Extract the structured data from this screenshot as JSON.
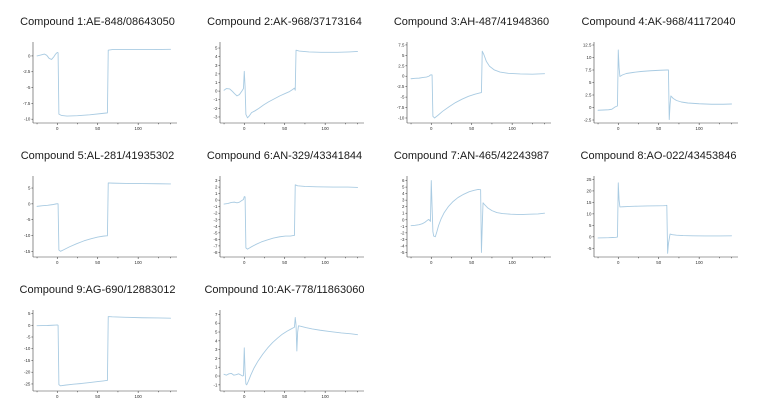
{
  "figure": {
    "background": "#ffffff",
    "line_color": "#a9cbe2",
    "axis_color": "#444444",
    "tick_label_color": "#333333",
    "title_color": "#1a1a1a"
  },
  "chart_data": [
    {
      "type": "line",
      "title": "Compound 1:AE-848/08643050",
      "xlim": [
        -30,
        148
      ],
      "ylim": [
        -10.6,
        2.2
      ],
      "x_ticks": [
        0,
        50,
        100
      ],
      "x_minor_ticks": [
        -25,
        25,
        75,
        125,
        140
      ],
      "y_ticks": [
        0,
        -2.5,
        -5,
        -7.5,
        -10
      ],
      "points": [
        [
          -25,
          0
        ],
        [
          -20,
          0.15
        ],
        [
          -16,
          0.3
        ],
        [
          -13,
          0.1
        ],
        [
          -10,
          -0.4
        ],
        [
          -7,
          -0.55
        ],
        [
          -4,
          -0.1
        ],
        [
          -2,
          0.3
        ],
        [
          0,
          0.55
        ],
        [
          1,
          0.5
        ],
        [
          2,
          -9.2
        ],
        [
          5,
          -9.4
        ],
        [
          12,
          -9.5
        ],
        [
          25,
          -9.45
        ],
        [
          40,
          -9.3
        ],
        [
          55,
          -9.1
        ],
        [
          62,
          -9.0
        ],
        [
          63,
          0.9
        ],
        [
          68,
          1.0
        ],
        [
          90,
          1.0
        ],
        [
          120,
          1.0
        ],
        [
          140,
          1.05
        ]
      ]
    },
    {
      "type": "line",
      "title": "Compound 2:AK-968/37173164",
      "xlim": [
        -30,
        148
      ],
      "ylim": [
        -3.7,
        5.7
      ],
      "x_ticks": [
        0,
        50,
        100
      ],
      "x_minor_ticks": [
        -25,
        25,
        75,
        125,
        140
      ],
      "y_ticks": [
        5,
        4,
        3,
        2,
        1,
        0,
        -1,
        -2,
        -3
      ],
      "points": [
        [
          -25,
          0.1
        ],
        [
          -22,
          0.3
        ],
        [
          -18,
          0.25
        ],
        [
          -15,
          0
        ],
        [
          -12,
          -0.3
        ],
        [
          -9,
          -0.55
        ],
        [
          -6,
          -0.4
        ],
        [
          -3,
          0
        ],
        [
          -1,
          0.3
        ],
        [
          0,
          2.3
        ],
        [
          1,
          0.5
        ],
        [
          2,
          -2.7
        ],
        [
          4,
          -3.1
        ],
        [
          6,
          -2.9
        ],
        [
          9,
          -2.5
        ],
        [
          13,
          -2.3
        ],
        [
          18,
          -2.0
        ],
        [
          24,
          -1.6
        ],
        [
          30,
          -1.25
        ],
        [
          37,
          -0.9
        ],
        [
          44,
          -0.55
        ],
        [
          50,
          -0.3
        ],
        [
          56,
          -0.05
        ],
        [
          60,
          0.2
        ],
        [
          62,
          0.35
        ],
        [
          63,
          0.1
        ],
        [
          64,
          4.75
        ],
        [
          68,
          4.65
        ],
        [
          80,
          4.55
        ],
        [
          95,
          4.5
        ],
        [
          115,
          4.5
        ],
        [
          130,
          4.55
        ],
        [
          140,
          4.6
        ]
      ]
    },
    {
      "type": "line",
      "title": "Compound 3:AH-487/41948360",
      "xlim": [
        -30,
        148
      ],
      "ylim": [
        -11.2,
        8.2
      ],
      "x_ticks": [
        0,
        50,
        100
      ],
      "x_minor_ticks": [
        -25,
        25,
        75,
        125,
        140
      ],
      "y_ticks": [
        7.5,
        5,
        2.5,
        0,
        -2.5,
        -5,
        -7.5,
        -10
      ],
      "points": [
        [
          -25,
          -0.6
        ],
        [
          -20,
          -0.5
        ],
        [
          -15,
          -0.45
        ],
        [
          -10,
          -0.3
        ],
        [
          -6,
          -0.2
        ],
        [
          -3,
          0
        ],
        [
          -1,
          0.3
        ],
        [
          0,
          0.35
        ],
        [
          1,
          0.3
        ],
        [
          2,
          -9.6
        ],
        [
          4,
          -10
        ],
        [
          8,
          -9.4
        ],
        [
          14,
          -8.4
        ],
        [
          22,
          -7.3
        ],
        [
          30,
          -6.3
        ],
        [
          38,
          -5.5
        ],
        [
          46,
          -4.8
        ],
        [
          54,
          -4.3
        ],
        [
          60,
          -4.0
        ],
        [
          62,
          -3.9
        ],
        [
          63,
          6.0
        ],
        [
          65,
          5.2
        ],
        [
          68,
          3.6
        ],
        [
          72,
          2.4
        ],
        [
          78,
          1.5
        ],
        [
          85,
          1.0
        ],
        [
          95,
          0.7
        ],
        [
          110,
          0.55
        ],
        [
          125,
          0.5
        ],
        [
          140,
          0.6
        ]
      ]
    },
    {
      "type": "line",
      "title": "Compound 4:AK-968/41172040",
      "xlim": [
        -30,
        148
      ],
      "ylim": [
        -3.1,
        13.1
      ],
      "x_ticks": [
        0,
        50,
        100
      ],
      "x_minor_ticks": [
        -25,
        25,
        75,
        125,
        140
      ],
      "y_ticks": [
        12.5,
        10,
        7.5,
        5,
        2.5,
        0,
        -2.5
      ],
      "points": [
        [
          -25,
          -0.55
        ],
        [
          -18,
          -0.5
        ],
        [
          -12,
          -0.45
        ],
        [
          -8,
          -0.35
        ],
        [
          -4,
          0.1
        ],
        [
          -2,
          0.25
        ],
        [
          -1,
          0.3
        ],
        [
          0,
          11.5
        ],
        [
          1,
          8.0
        ],
        [
          2,
          6.2
        ],
        [
          5,
          6.5
        ],
        [
          10,
          6.8
        ],
        [
          18,
          7.0
        ],
        [
          28,
          7.2
        ],
        [
          40,
          7.35
        ],
        [
          52,
          7.45
        ],
        [
          60,
          7.5
        ],
        [
          62,
          7.5
        ],
        [
          63,
          -2.4
        ],
        [
          64,
          0.5
        ],
        [
          65,
          2.3
        ],
        [
          68,
          1.8
        ],
        [
          72,
          1.4
        ],
        [
          78,
          1.1
        ],
        [
          86,
          0.9
        ],
        [
          100,
          0.75
        ],
        [
          115,
          0.65
        ],
        [
          130,
          0.65
        ],
        [
          140,
          0.7
        ]
      ]
    },
    {
      "type": "line",
      "title": "Compound 5:AL-281/41935302",
      "xlim": [
        -30,
        148
      ],
      "ylim": [
        -16.8,
        8.8
      ],
      "x_ticks": [
        0,
        50,
        100
      ],
      "x_minor_ticks": [
        -25,
        25,
        75,
        125,
        140
      ],
      "y_ticks": [
        5,
        0,
        -5,
        -10,
        -15
      ],
      "points": [
        [
          -25,
          -0.8
        ],
        [
          -18,
          -0.6
        ],
        [
          -12,
          -0.45
        ],
        [
          -6,
          -0.25
        ],
        [
          -2,
          -0.05
        ],
        [
          0,
          0.05
        ],
        [
          1,
          0
        ],
        [
          2,
          -14.6
        ],
        [
          4,
          -15.0
        ],
        [
          8,
          -14.5
        ],
        [
          15,
          -13.6
        ],
        [
          24,
          -12.6
        ],
        [
          33,
          -11.7
        ],
        [
          42,
          -11.0
        ],
        [
          50,
          -10.5
        ],
        [
          57,
          -10.2
        ],
        [
          61,
          -10.1
        ],
        [
          62,
          -10.1
        ],
        [
          63,
          6.6
        ],
        [
          68,
          6.55
        ],
        [
          85,
          6.45
        ],
        [
          105,
          6.4
        ],
        [
          125,
          6.35
        ],
        [
          140,
          6.3
        ]
      ]
    },
    {
      "type": "line",
      "title": "Compound 6:AN-329/43341844",
      "xlim": [
        -30,
        148
      ],
      "ylim": [
        -8.7,
        3.7
      ],
      "x_ticks": [
        0,
        50,
        100
      ],
      "x_minor_ticks": [
        -25,
        25,
        75,
        125,
        140
      ],
      "y_ticks": [
        3,
        2,
        1,
        0,
        -1,
        -2,
        -3,
        -4,
        -5,
        -6,
        -7,
        -8
      ],
      "points": [
        [
          -25,
          -0.6
        ],
        [
          -20,
          -0.5
        ],
        [
          -16,
          -0.35
        ],
        [
          -12,
          -0.3
        ],
        [
          -9,
          -0.4
        ],
        [
          -6,
          -0.3
        ],
        [
          -3,
          -0.05
        ],
        [
          -1,
          0.1
        ],
        [
          0,
          0.55
        ],
        [
          1,
          0.5
        ],
        [
          2,
          -7.3
        ],
        [
          4,
          -7.5
        ],
        [
          8,
          -7.2
        ],
        [
          14,
          -6.8
        ],
        [
          21,
          -6.4
        ],
        [
          28,
          -6.1
        ],
        [
          36,
          -5.8
        ],
        [
          44,
          -5.6
        ],
        [
          51,
          -5.5
        ],
        [
          57,
          -5.5
        ],
        [
          61,
          -5.4
        ],
        [
          62,
          -5.4
        ],
        [
          63,
          2.35
        ],
        [
          66,
          2.2
        ],
        [
          75,
          2.1
        ],
        [
          90,
          2.05
        ],
        [
          110,
          2.0
        ],
        [
          128,
          2.0
        ],
        [
          140,
          1.95
        ]
      ]
    },
    {
      "type": "line",
      "title": "Compound 7:AN-465/42243987",
      "xlim": [
        -30,
        148
      ],
      "ylim": [
        -5.7,
        6.7
      ],
      "x_ticks": [
        0,
        50,
        100
      ],
      "x_minor_ticks": [
        -25,
        25,
        75,
        125,
        140
      ],
      "y_ticks": [
        6,
        5,
        4,
        3,
        2,
        1,
        0,
        -1,
        -2,
        -3,
        -4,
        -5
      ],
      "points": [
        [
          -25,
          -0.9
        ],
        [
          -20,
          -0.85
        ],
        [
          -15,
          -0.75
        ],
        [
          -11,
          -0.6
        ],
        [
          -8,
          -0.4
        ],
        [
          -5,
          -0.1
        ],
        [
          -3,
          0.05
        ],
        [
          -2,
          -0.1
        ],
        [
          -1,
          -0.25
        ],
        [
          0,
          6.0
        ],
        [
          1,
          2.0
        ],
        [
          2,
          -1.8
        ],
        [
          3,
          -2.5
        ],
        [
          5,
          -2.6
        ],
        [
          7,
          -1.8
        ],
        [
          9,
          -0.9
        ],
        [
          12,
          0.1
        ],
        [
          16,
          1.1
        ],
        [
          21,
          2.0
        ],
        [
          27,
          2.8
        ],
        [
          33,
          3.4
        ],
        [
          40,
          3.9
        ],
        [
          47,
          4.3
        ],
        [
          53,
          4.5
        ],
        [
          58,
          4.65
        ],
        [
          61,
          4.6
        ],
        [
          62,
          -5.0
        ],
        [
          63,
          -1.0
        ],
        [
          64,
          2.6
        ],
        [
          66,
          2.3
        ],
        [
          70,
          1.8
        ],
        [
          75,
          1.4
        ],
        [
          81,
          1.1
        ],
        [
          88,
          0.95
        ],
        [
          98,
          0.85
        ],
        [
          110,
          0.8
        ],
        [
          122,
          0.85
        ],
        [
          132,
          0.9
        ],
        [
          140,
          1.0
        ]
      ]
    },
    {
      "type": "line",
      "title": "Compound 8:AO-022/43453846",
      "xlim": [
        -30,
        148
      ],
      "ylim": [
        -8.8,
        26.5
      ],
      "x_ticks": [
        0,
        50,
        100
      ],
      "x_minor_ticks": [
        -25,
        25,
        75,
        125,
        140
      ],
      "y_ticks": [
        25,
        20,
        15,
        10,
        5,
        0,
        -5
      ],
      "points": [
        [
          -25,
          -0.5
        ],
        [
          -18,
          -0.45
        ],
        [
          -12,
          -0.4
        ],
        [
          -7,
          -0.3
        ],
        [
          -3,
          -0.2
        ],
        [
          -1,
          -0.1
        ],
        [
          0,
          23.5
        ],
        [
          1,
          16
        ],
        [
          2,
          13.0
        ],
        [
          6,
          13.1
        ],
        [
          14,
          13.25
        ],
        [
          24,
          13.35
        ],
        [
          36,
          13.45
        ],
        [
          48,
          13.5
        ],
        [
          56,
          13.55
        ],
        [
          59,
          13.6
        ],
        [
          60,
          13.7
        ],
        [
          61,
          -7.2
        ],
        [
          62,
          -3
        ],
        [
          64,
          1.2
        ],
        [
          67,
          0.9
        ],
        [
          72,
          0.7
        ],
        [
          80,
          0.55
        ],
        [
          92,
          0.45
        ],
        [
          108,
          0.4
        ],
        [
          125,
          0.4
        ],
        [
          140,
          0.45
        ]
      ]
    },
    {
      "type": "line",
      "title": "Compound 9:AG-690/12883012",
      "xlim": [
        -30,
        148
      ],
      "ylim": [
        -28,
        6.5
      ],
      "x_ticks": [
        0,
        50,
        100
      ],
      "x_minor_ticks": [
        -25,
        25,
        75,
        125,
        140
      ],
      "y_ticks": [
        5,
        0,
        -5,
        -10,
        -15,
        -20,
        -25
      ],
      "points": [
        [
          -25,
          -0.2
        ],
        [
          -18,
          -0.15
        ],
        [
          -12,
          -0.1
        ],
        [
          -6,
          0
        ],
        [
          -2,
          0.1
        ],
        [
          0,
          0.15
        ],
        [
          1,
          0
        ],
        [
          2,
          -25.3
        ],
        [
          4,
          -25.8
        ],
        [
          10,
          -25.5
        ],
        [
          20,
          -25.1
        ],
        [
          30,
          -24.8
        ],
        [
          40,
          -24.4
        ],
        [
          50,
          -24.0
        ],
        [
          57,
          -23.7
        ],
        [
          61,
          -23.5
        ],
        [
          62,
          -23.5
        ],
        [
          63,
          3.7
        ],
        [
          68,
          3.6
        ],
        [
          85,
          3.4
        ],
        [
          105,
          3.2
        ],
        [
          125,
          3.1
        ],
        [
          140,
          3.0
        ]
      ]
    },
    {
      "type": "line",
      "title": "Compound 10:AK-778/11863060",
      "xlim": [
        -30,
        148
      ],
      "ylim": [
        -1.7,
        7.5
      ],
      "x_ticks": [
        0,
        50,
        100
      ],
      "x_minor_ticks": [
        -25,
        25,
        75,
        125,
        140
      ],
      "y_ticks": [
        7,
        6,
        5,
        4,
        3,
        2,
        1,
        0,
        -1
      ],
      "points": [
        [
          -25,
          0.2
        ],
        [
          -22,
          0.1
        ],
        [
          -19,
          0.25
        ],
        [
          -16,
          0.3
        ],
        [
          -13,
          0.1
        ],
        [
          -10,
          0.15
        ],
        [
          -7,
          0.25
        ],
        [
          -4,
          0.1
        ],
        [
          -2,
          0
        ],
        [
          -1,
          0.05
        ],
        [
          0,
          3.2
        ],
        [
          1,
          0.5
        ],
        [
          2,
          -0.9
        ],
        [
          3,
          -1.0
        ],
        [
          5,
          -0.6
        ],
        [
          8,
          0.1
        ],
        [
          12,
          0.9
        ],
        [
          17,
          1.7
        ],
        [
          23,
          2.5
        ],
        [
          29,
          3.2
        ],
        [
          35,
          3.8
        ],
        [
          41,
          4.3
        ],
        [
          47,
          4.75
        ],
        [
          53,
          5.1
        ],
        [
          58,
          5.35
        ],
        [
          61,
          5.5
        ],
        [
          62,
          5.55
        ],
        [
          63,
          6.65
        ],
        [
          64,
          5.8
        ],
        [
          65,
          2.85
        ],
        [
          66,
          5.0
        ],
        [
          67,
          5.7
        ],
        [
          70,
          5.65
        ],
        [
          76,
          5.5
        ],
        [
          84,
          5.35
        ],
        [
          94,
          5.2
        ],
        [
          106,
          5.05
        ],
        [
          120,
          4.9
        ],
        [
          132,
          4.8
        ],
        [
          140,
          4.7
        ]
      ]
    }
  ]
}
